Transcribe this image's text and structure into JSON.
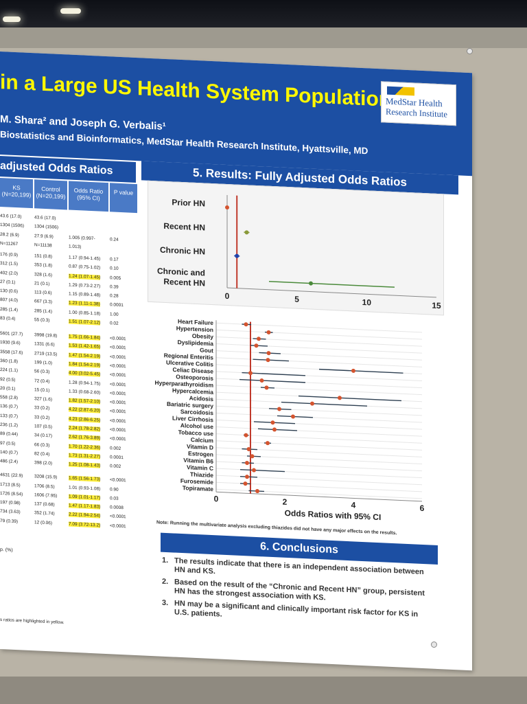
{
  "poster": {
    "title": "in a Large US Health System Population",
    "authors": "M. Shara² and Joseph G. Verbalis¹",
    "affiliation": "Biostatistics and Bioinformatics, MedStar Health Research Institute, Hyattsville, MD",
    "logo_line1": "MedStar Health",
    "logo_line2": "Research Institute"
  },
  "left_section": {
    "heading": "adjusted Odds Ratios",
    "headers": [
      "KS\n(N=20,199)",
      "Control\n(N=20,199)",
      "Odds Ratio\n(95% CI)",
      "P value"
    ],
    "rows": [
      [
        "43.6 (17.0)",
        "43.6 (17.0)",
        "",
        ""
      ],
      [
        "1304 (1506)",
        "1304 (1506)",
        "",
        ""
      ],
      [
        "28.2 (6.9)",
        "27.9 (6.9)",
        "1.005 (0.997-",
        "0.24"
      ],
      [
        "N=11267",
        "N=11138",
        "1.013)",
        ""
      ],
      [
        "176 (0.9)",
        "151 (0.8)",
        "1.17 (0.94-1.45)",
        "0.17"
      ],
      [
        "312 (1.5)",
        "353 (1.8)",
        "0.87 (0.75-1.02)",
        "0.10"
      ],
      [
        "402 (2.0)",
        "328 (1.6)",
        "1.24 (1.07-1.45)",
        "0.005"
      ],
      [
        "27 (0.1)",
        "21 (0.1)",
        "1.29 (0.73-2.27)",
        "0.39"
      ],
      [
        "130 (0.6)",
        "113 (0.6)",
        "1.15 (0.89-1.48)",
        "0.28"
      ],
      [
        "807 (4.0)",
        "667 (3.3)",
        "1.23 (1.11-1.38)",
        "0.0001"
      ],
      [
        "285 (1.4)",
        "285 (1.4)",
        "1.00 (0.85-1.18)",
        "1.00"
      ],
      [
        "83 (0.4)",
        "55 (0.3)",
        "1.51 (1.07-2.12)",
        "0.02"
      ],
      [
        "5601 (27.7)",
        "3998 (19.8)",
        "1.75 (1.66-1.84)",
        "<0.0001"
      ],
      [
        "1930 (9.6)",
        "1331 (6.6)",
        "1.53 (1.42-1.65)",
        "<0.0001"
      ],
      [
        "3558 (17.6)",
        "2719 (13.5)",
        "1.47 (1.54-2.19)",
        "<0.0001"
      ],
      [
        "360 (1.8)",
        "199 (1.0)",
        "1.84 (1.54-2.19)",
        "<0.0001"
      ],
      [
        "224 (1.1)",
        "56 (0.3)",
        "4.00 (3.02-5.45)",
        "<0.0001"
      ],
      [
        "92 (0.5)",
        "72 (0.4)",
        "1.28 (0.94-1.75)",
        "<0.0001"
      ],
      [
        "20 (0.1)",
        "15 (0.1)",
        "1.33 (0.68-2.60)",
        "<0.0001"
      ],
      [
        "558 (2.8)",
        "327 (1.6)",
        "1.82 (1.57-2.10)",
        "<0.0001"
      ],
      [
        "136 (0.7)",
        "33 (0.2)",
        "4.22 (2.87-6.20)",
        "<0.0001"
      ],
      [
        "133 (0.7)",
        "33 (0.2)",
        "4.23 (2.86-6.25)",
        "<0.0001"
      ],
      [
        "236 (1.2)",
        "107 (0.5)",
        "2.24 (1.78-2.82)",
        "<0.0001"
      ],
      [
        "89 (0.44)",
        "34 (0.17)",
        "2.62 (1.76-3.89)",
        "<0.0001"
      ],
      [
        "97 (0.5)",
        "66 (0.3)",
        "1.70 (1.22-2.36)",
        "0.002"
      ],
      [
        "140 (0.7)",
        "82 (0.4)",
        "1.73 (1.31-2.27)",
        "0.0001"
      ],
      [
        "486 (2.4)",
        "398 (2.0)",
        "1.25 (1.08-1.43)",
        "0.002"
      ],
      [
        "4631 (22.9)",
        "3208 (15.9)",
        "1.65 (1.56-1.73)",
        "<0.0001"
      ],
      [
        "1713 (8.5)",
        "1706 (8.5)",
        "1.01 (0.93-1.08)",
        "0.90"
      ],
      [
        "1726 (8.54)",
        "1606 (7.95)",
        "1.09 (1.01-1.17)",
        "0.03"
      ],
      [
        "197 (0.98)",
        "137 (0.68)",
        "1.47 (1.17-1.83)",
        "0.0008"
      ],
      [
        "734 (3.63)",
        "352 (1.74)",
        "2.22 (1.94-2.54)",
        "<0.0001"
      ],
      [
        "79 (0.39)",
        "12 (0.06)",
        "7.09 (3.72-13.2)",
        "<0.0001"
      ]
    ],
    "stub_label": "p. (%)",
    "footnote": "s ratios are highlighted in yellow."
  },
  "results": {
    "heading": "5. Results:  Fully Adjusted Odds Ratios",
    "note": "Note: Running the multivariate analysis excluding thiazides did not have any major effects on the results.",
    "x2_label": "Odds Ratios with 95% CI"
  },
  "chart_data": [
    {
      "type": "scatter",
      "categories": [
        "Prior HN",
        "Recent HN",
        "Chronic HN",
        "Chronic and Recent HN"
      ],
      "values": [
        0.0,
        1.4,
        0.7,
        6.0
      ],
      "ci_low": [
        0.0,
        1.2,
        0.5,
        3.0
      ],
      "ci_high": [
        0.0,
        1.6,
        0.9,
        12.0
      ],
      "colors": [
        "#d4542f",
        "#8a9a3a",
        "#2244aa",
        "#4a8a3a"
      ],
      "xlim": [
        0,
        15
      ],
      "xticks": [
        "0",
        "5",
        "10",
        "15"
      ],
      "reference_line": 0.7
    },
    {
      "type": "scatter",
      "categories": [
        "Heart Failure",
        "Hypertension",
        "Obesity",
        "Dyslipidemia",
        "Gout",
        "Regional Enteritis",
        "Ulcerative Colitis",
        "Celiac Disease",
        "Osteoporosis",
        "Hyperparathyroidism",
        "Hypercalcemia",
        "Acidosis",
        "Bariatric surgery",
        "Sarcoidosis",
        "Liver Cirrhosis",
        "Alcohol use",
        "Tobacco use",
        "Calcium",
        "Vitamin D",
        "Estrogen",
        "Vitamin B6",
        "Vitamin C",
        "Thiazide",
        "Furosemide",
        "Topiramate"
      ],
      "values": [
        0.87,
        1.53,
        1.24,
        1.17,
        1.53,
        1.51,
        4.0,
        1.0,
        1.33,
        1.47,
        3.6,
        2.8,
        1.84,
        2.24,
        1.65,
        1.7,
        0.87,
        1.5,
        0.95,
        1.05,
        0.9,
        1.1,
        0.9,
        0.85,
        1.2
      ],
      "ci_low": [
        0.75,
        1.42,
        1.07,
        1.0,
        1.25,
        1.07,
        3.0,
        0.75,
        0.68,
        1.3,
        2.4,
        1.9,
        1.54,
        1.78,
        1.1,
        1.22,
        0.8,
        1.4,
        0.75,
        0.9,
        0.75,
        0.7,
        0.7,
        0.7,
        0.95
      ],
      "ci_high": [
        1.02,
        1.65,
        1.45,
        1.5,
        1.88,
        2.12,
        5.45,
        2.6,
        2.6,
        1.7,
        5.4,
        4.4,
        2.19,
        2.82,
        2.3,
        2.36,
        0.95,
        1.6,
        1.2,
        1.3,
        1.1,
        2.0,
        1.2,
        1.0,
        1.4
      ],
      "xlim": [
        0,
        6
      ],
      "xticks": [
        "0",
        "2",
        "4",
        "6"
      ],
      "reference_line": 1.0,
      "xlabel": "Odds Ratios with 95% CI"
    }
  ],
  "conclusions": {
    "heading": "6. Conclusions",
    "items": [
      "The results indicate that there is an independent association between HN and KS.",
      "Based on the result of the “Chronic and Recent HN” group, persistent HN has the strongest association with KS.",
      "HN may be a significant and clinically important risk factor for KS in U.S. patients."
    ]
  }
}
